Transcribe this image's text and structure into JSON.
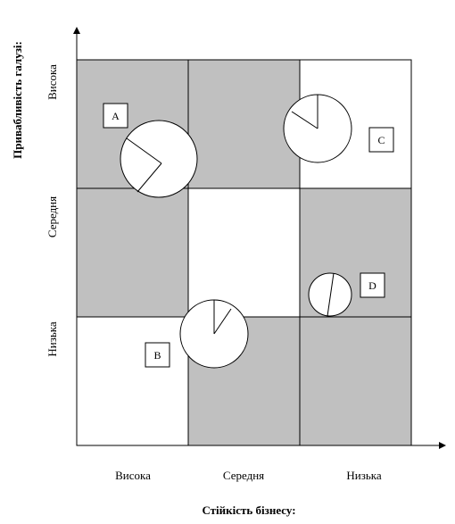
{
  "diagram": {
    "y_axis_title": "Привабливість галузі:",
    "x_axis_title": "Стійкість бізнесу:",
    "y_levels": [
      "Висока",
      "Середня",
      "Низька"
    ],
    "x_levels": [
      "Висока",
      "Середня",
      "Низька"
    ],
    "grid_shading": [
      [
        "gray",
        "gray",
        "white"
      ],
      [
        "gray",
        "white",
        "gray"
      ],
      [
        "white",
        "gray",
        "gray"
      ]
    ],
    "colors": {
      "shaded_cell": "#c0c0c0",
      "white_cell": "#ffffff",
      "line": "#000000"
    },
    "businesses": [
      {
        "label": "A"
      },
      {
        "label": "B"
      },
      {
        "label": "C"
      },
      {
        "label": "D"
      }
    ]
  }
}
